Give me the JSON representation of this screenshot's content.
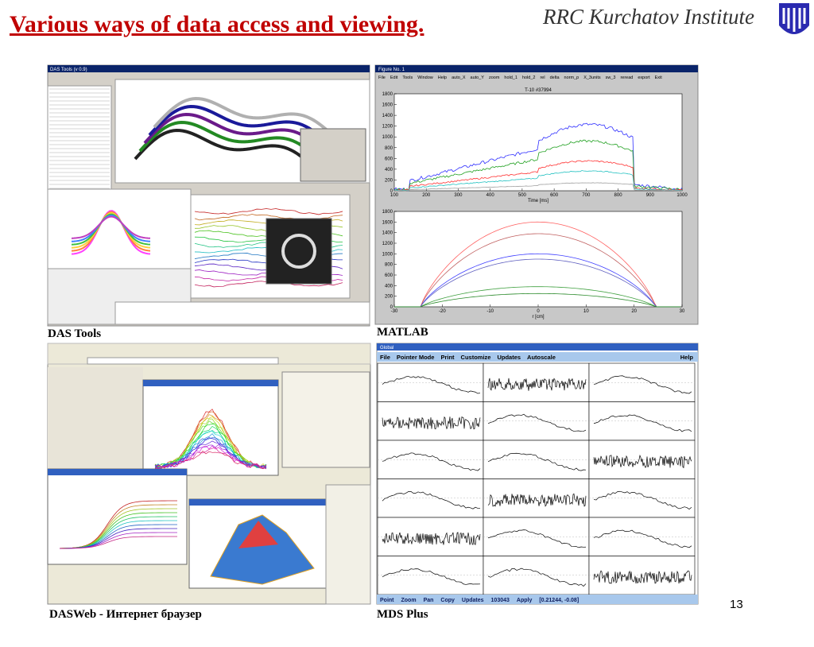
{
  "header": {
    "title": "Various ways of data access and viewing.",
    "logo": "RRC Kurchatov Institute"
  },
  "panels": [
    {
      "caption": "DAS Tools",
      "window_title": "DAS Tools (v 0.9)"
    },
    {
      "caption": "MATLAB",
      "window_title": "Figure No. 1",
      "menu": [
        "File",
        "Edit",
        "Tools",
        "Window",
        "Help",
        "auto_X",
        "auto_Y",
        "zoom",
        "hold_1",
        "hold_2",
        "rel",
        "delta",
        "norm_p",
        "X_3units",
        "sw_3",
        "reread",
        "export",
        "Exit"
      ],
      "plots": [
        {
          "title": "T-10 #37994",
          "xlabel": "Time [ms]",
          "xlim": [
            100,
            1000
          ],
          "xticks": [
            100,
            200,
            300,
            400,
            500,
            600,
            700,
            800,
            900,
            1000
          ],
          "ylim": [
            0,
            1800
          ],
          "yticks": [
            0,
            200,
            400,
            600,
            800,
            1000,
            1200,
            1400,
            1600,
            1800
          ]
        },
        {
          "xlabel": "r [cm]",
          "xlim": [
            -30,
            30
          ],
          "xticks": [
            -30,
            -20,
            -10,
            0,
            10,
            20,
            30
          ],
          "ylim": [
            0,
            1800
          ],
          "yticks": [
            0,
            200,
            400,
            600,
            800,
            1000,
            1200,
            1400,
            1600,
            1800
          ]
        }
      ]
    },
    {
      "caption": "DASWeb - Интернет браузер"
    },
    {
      "caption": "MDS Plus",
      "window_title": "Global",
      "menu": [
        "File",
        "Pointer Mode",
        "Print",
        "Customize",
        "Updates",
        "Autoscale",
        "Help"
      ],
      "status": [
        "Point",
        "Zoom",
        "Pan",
        "Copy",
        "Updates",
        "103043",
        "Apply",
        "[0.21244, -0.08]"
      ]
    }
  ],
  "page_number": 13
}
